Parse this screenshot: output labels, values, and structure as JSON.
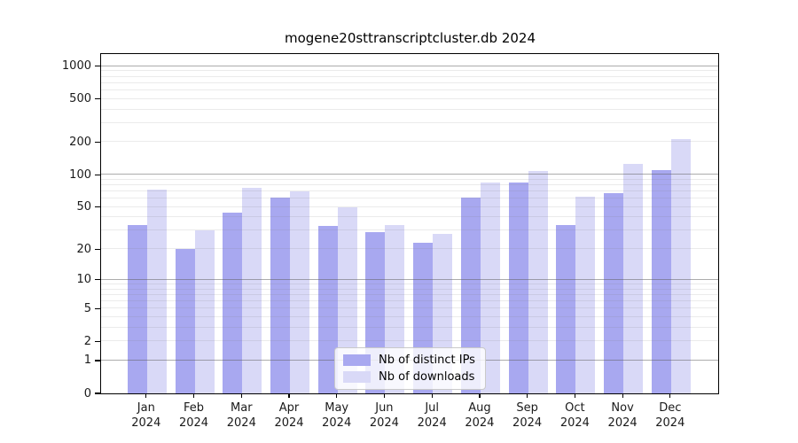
{
  "title": "mogene20sttranscriptcluster.db 2024",
  "chart_data": {
    "type": "bar",
    "title": "mogene20sttranscriptcluster.db 2024",
    "categories": [
      "Jan 2024",
      "Feb 2024",
      "Mar 2024",
      "Apr 2024",
      "May 2024",
      "Jun 2024",
      "Jul 2024",
      "Aug 2024",
      "Sep 2024",
      "Oct 2024",
      "Nov 2024",
      "Dec 2024"
    ],
    "series": [
      {
        "name": "Nb of distinct IPs",
        "color": "#a8a8f0",
        "values": [
          34,
          20,
          44,
          62,
          33,
          29,
          23,
          62,
          84,
          34,
          67,
          110
        ]
      },
      {
        "name": "Nb of downloads",
        "color": "#d9d9f7",
        "values": [
          73,
          30,
          75,
          70,
          50,
          34,
          28,
          84,
          108,
          63,
          125,
          213
        ]
      }
    ],
    "xlabel": "",
    "ylabel": "",
    "y_scale": "log10(value+1)",
    "y_ticks": [
      0,
      1,
      2,
      5,
      10,
      20,
      50,
      100,
      200,
      500,
      1000
    ],
    "ylim": [
      0,
      1289
    ],
    "grid": "minor lines per decade (2-9), major lines at 1, 10, 100, 1000, drawn over bars",
    "legend_position": "lower center inside plot",
    "colors": {
      "axis": "#000000",
      "grid_major": "#5f5f5f",
      "grid_minor": "#787878",
      "legend_border": "#c9c9c9",
      "background": "#ffffff"
    }
  }
}
